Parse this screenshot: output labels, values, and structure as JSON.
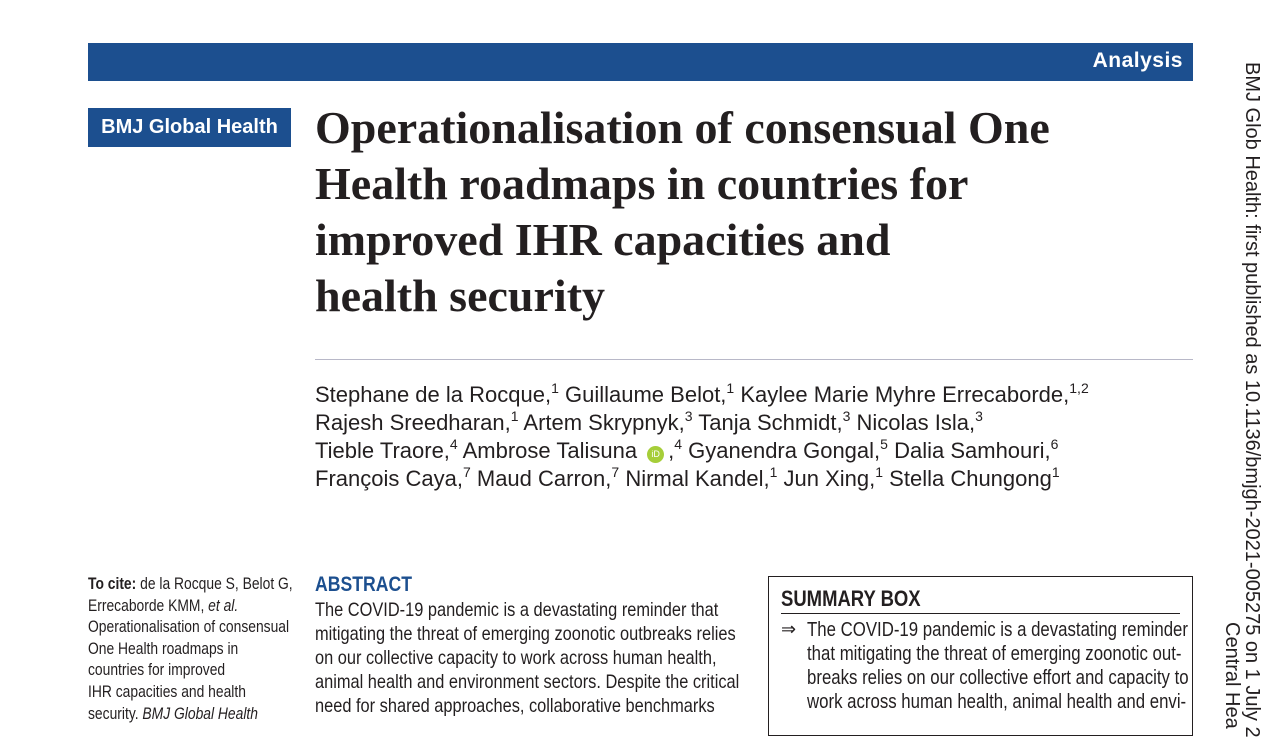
{
  "header": {
    "section": "Analysis",
    "journal": "BMJ Global Health"
  },
  "title_lines": [
    "Operationalisation of consensual One",
    "Health roadmaps in countries for",
    "improved IHR capacities and",
    "health security"
  ],
  "authors": [
    [
      {
        "name": "Stephane de la Rocque,",
        "sup": "1"
      },
      {
        "name": "Guillaume Belot,",
        "sup": "1"
      },
      {
        "name": "Kaylee Marie Myhre Errecaborde,",
        "sup": "1,2"
      }
    ],
    [
      {
        "name": "Rajesh Sreedharan,",
        "sup": "1"
      },
      {
        "name": "Artem Skrypnyk,",
        "sup": "3"
      },
      {
        "name": "Tanja Schmidt,",
        "sup": "3"
      },
      {
        "name": "Nicolas Isla,",
        "sup": "3"
      }
    ],
    [
      {
        "name": "Tieble Traore,",
        "sup": "4"
      },
      {
        "name": "Ambrose Talisuna",
        "orcid": true,
        "after": ",",
        "sup": "4"
      },
      {
        "name": "Gyanendra Gongal,",
        "sup": "5"
      },
      {
        "name": "Dalia Samhouri,",
        "sup": "6"
      }
    ],
    [
      {
        "name": "François Caya,",
        "sup": "7"
      },
      {
        "name": "Maud Carron,",
        "sup": "7"
      },
      {
        "name": "Nirmal Kandel,",
        "sup": "1"
      },
      {
        "name": "Jun Xing,",
        "sup": "1"
      },
      {
        "name": "Stella Chungong",
        "sup": "1"
      }
    ]
  ],
  "citation": [
    [
      {
        "t": "To cite:",
        "s": "bold"
      },
      {
        "t": " de la Rocque S, Belot G,"
      }
    ],
    [
      {
        "t": "Errecaborde KMM, "
      },
      {
        "t": "et al.",
        "s": "italic"
      }
    ],
    [
      {
        "t": "Operationalisation of consensual"
      }
    ],
    [
      {
        "t": "One Health roadmaps in"
      }
    ],
    [
      {
        "t": "countries for improved"
      }
    ],
    [
      {
        "t": "IHR capacities and health"
      }
    ],
    [
      {
        "t": "security. "
      },
      {
        "t": "BMJ Global Health",
        "s": "italic"
      }
    ]
  ],
  "abstract": {
    "heading": "ABSTRACT",
    "lines": [
      "The COVID-19 pandemic is a devastating reminder that",
      "mitigating the threat of emerging zoonotic outbreaks relies",
      "on our collective capacity to work across human health,",
      "animal health and environment sectors. Despite the critical",
      "need for shared approaches, collaborative benchmarks"
    ]
  },
  "summary": {
    "heading": "SUMMARY BOX",
    "bullet": "⇒",
    "lines": [
      "The COVID-19 pandemic is a devastating reminder",
      "that mitigating the threat of emerging zoonotic out-",
      "breaks relies on our collective effort and capacity to",
      "work across human health, animal health and envi-"
    ]
  },
  "sidebar": [
    "BMJ Glob Health: first published as 10.1136/bmjgh-2021-005275 on 1 July 2",
    "Central Hea"
  ]
}
